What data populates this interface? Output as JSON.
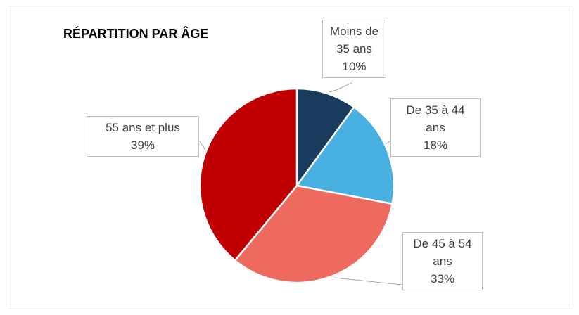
{
  "chart_data": {
    "type": "pie",
    "title": "RÉPARTITION PAR ÂGE",
    "categories": [
      "Moins de 35 ans",
      "De 35 à 44 ans",
      "De 45 à 54 ans",
      "55 ans et plus"
    ],
    "values": [
      10,
      18,
      33,
      39
    ],
    "value_labels": [
      "10%",
      "18%",
      "33%",
      "39%"
    ],
    "colors": [
      "#183b5e",
      "#47b0e0",
      "#ee6a5f",
      "#c00000"
    ]
  }
}
